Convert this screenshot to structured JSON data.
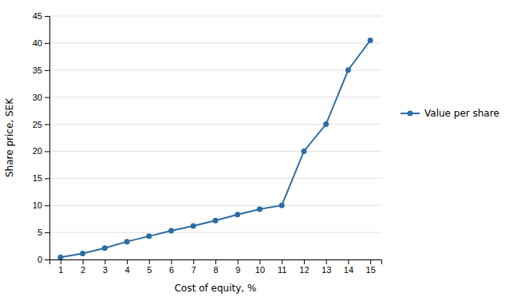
{
  "chart_data": {
    "type": "line",
    "xlabel": "Cost of equity, %",
    "ylabel": "Share price, SEK",
    "x": [
      1,
      2,
      3,
      4,
      5,
      6,
      7,
      8,
      9,
      10,
      11,
      12,
      13,
      14,
      15
    ],
    "series": [
      {
        "name": "Value per share",
        "color": "#2E6DA4",
        "marker": "circle",
        "values": [
          0.4,
          1.1,
          2.1,
          3.3,
          4.3,
          5.3,
          6.2,
          7.2,
          8.3,
          9.3,
          10.0,
          20.0,
          25.0,
          35.0,
          40.5
        ]
      }
    ],
    "xlim": [
      0.5,
      15.5
    ],
    "ylim": [
      0,
      45
    ],
    "xticks": [
      1,
      2,
      3,
      4,
      5,
      6,
      7,
      8,
      9,
      10,
      11,
      12,
      13,
      14,
      15
    ],
    "yticks": [
      0,
      5,
      10,
      15,
      20,
      25,
      30,
      35,
      40,
      45
    ],
    "grid": "y",
    "legend": "right"
  }
}
